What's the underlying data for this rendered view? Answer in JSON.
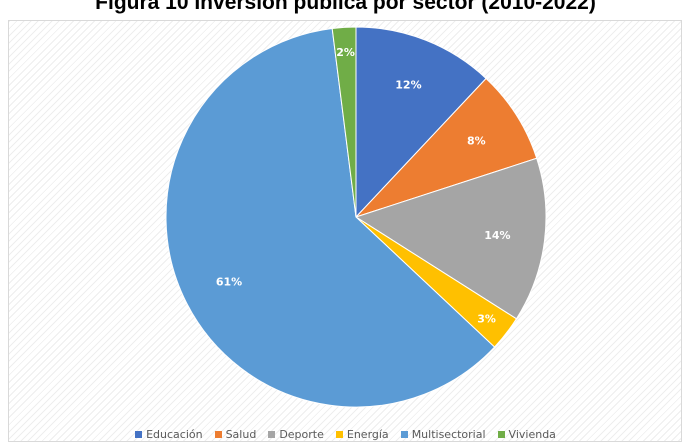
{
  "chart_data": {
    "type": "pie",
    "title": "Figura 10 Inversión pública por sector (2010-2022)",
    "categories": [
      "Educación",
      "Salud",
      "Deporte",
      "Energía",
      "Multisectorial",
      "Vivienda"
    ],
    "values": [
      12,
      8,
      14,
      3,
      61,
      2
    ],
    "data_labels": [
      "12%",
      "8%",
      "14%",
      "3%",
      "61%",
      "2%"
    ],
    "colors": [
      "#4472c4",
      "#ed7d31",
      "#a5a5a5",
      "#ffc000",
      "#5b9bd5",
      "#70ad47"
    ],
    "legend_position": "bottom"
  }
}
